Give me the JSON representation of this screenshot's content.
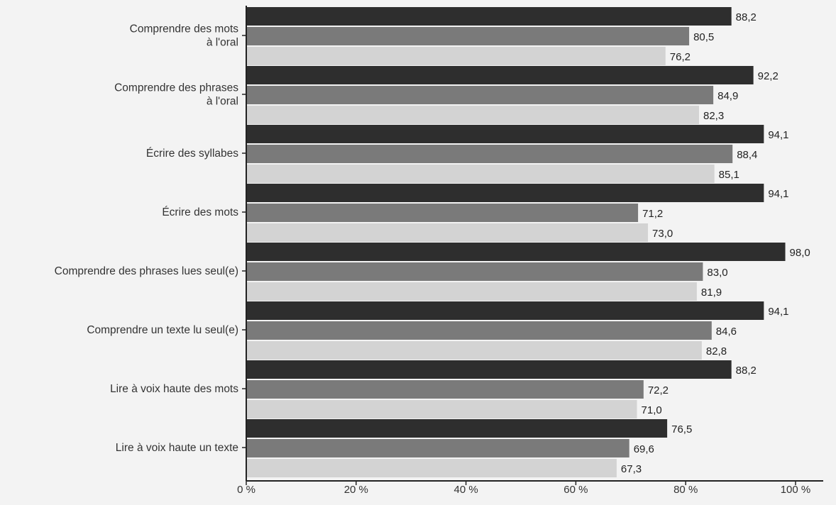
{
  "chart_data": {
    "type": "bar",
    "orientation": "horizontal",
    "categories": [
      [
        "Comprendre des mots",
        "à l'oral"
      ],
      [
        "Comprendre des phrases",
        "à l'oral"
      ],
      [
        "Écrire des syllabes"
      ],
      [
        "Écrire des mots"
      ],
      [
        "Comprendre des phrases lues seul(e)"
      ],
      [
        "Comprendre un texte lu seul(e)"
      ],
      [
        "Lire à voix haute des mots"
      ],
      [
        "Lire à voix haute un texte"
      ]
    ],
    "series": [
      {
        "color": "#2e2e2e",
        "values": [
          88.2,
          92.2,
          94.1,
          94.1,
          98.0,
          94.1,
          88.2,
          76.5
        ],
        "labels": [
          "88,2",
          "92,2",
          "94,1",
          "94,1",
          "98,0",
          "94,1",
          "88,2",
          "76,5"
        ]
      },
      {
        "color": "#7a7a7a",
        "values": [
          80.5,
          84.9,
          88.4,
          71.2,
          83.0,
          84.6,
          72.2,
          69.6
        ],
        "labels": [
          "80,5",
          "84,9",
          "88,4",
          "71,2",
          "83,0",
          "84,6",
          "72,2",
          "69,6"
        ]
      },
      {
        "color": "#d3d3d3",
        "values": [
          76.2,
          82.3,
          85.1,
          73.0,
          81.9,
          82.8,
          71.0,
          67.3
        ],
        "labels": [
          "76,2",
          "82,3",
          "85,1",
          "73,0",
          "81,9",
          "82,8",
          "71,0",
          "67,3"
        ]
      }
    ],
    "xlim": [
      0,
      100
    ],
    "xticks": [
      {
        "value": 0,
        "label": "0 %"
      },
      {
        "value": 20,
        "label": "20 %"
      },
      {
        "value": 40,
        "label": "40 %"
      },
      {
        "value": 60,
        "label": "60 %"
      },
      {
        "value": 80,
        "label": "80 %"
      },
      {
        "value": 100,
        "label": "100 %"
      }
    ],
    "grid": false,
    "legend": false
  }
}
